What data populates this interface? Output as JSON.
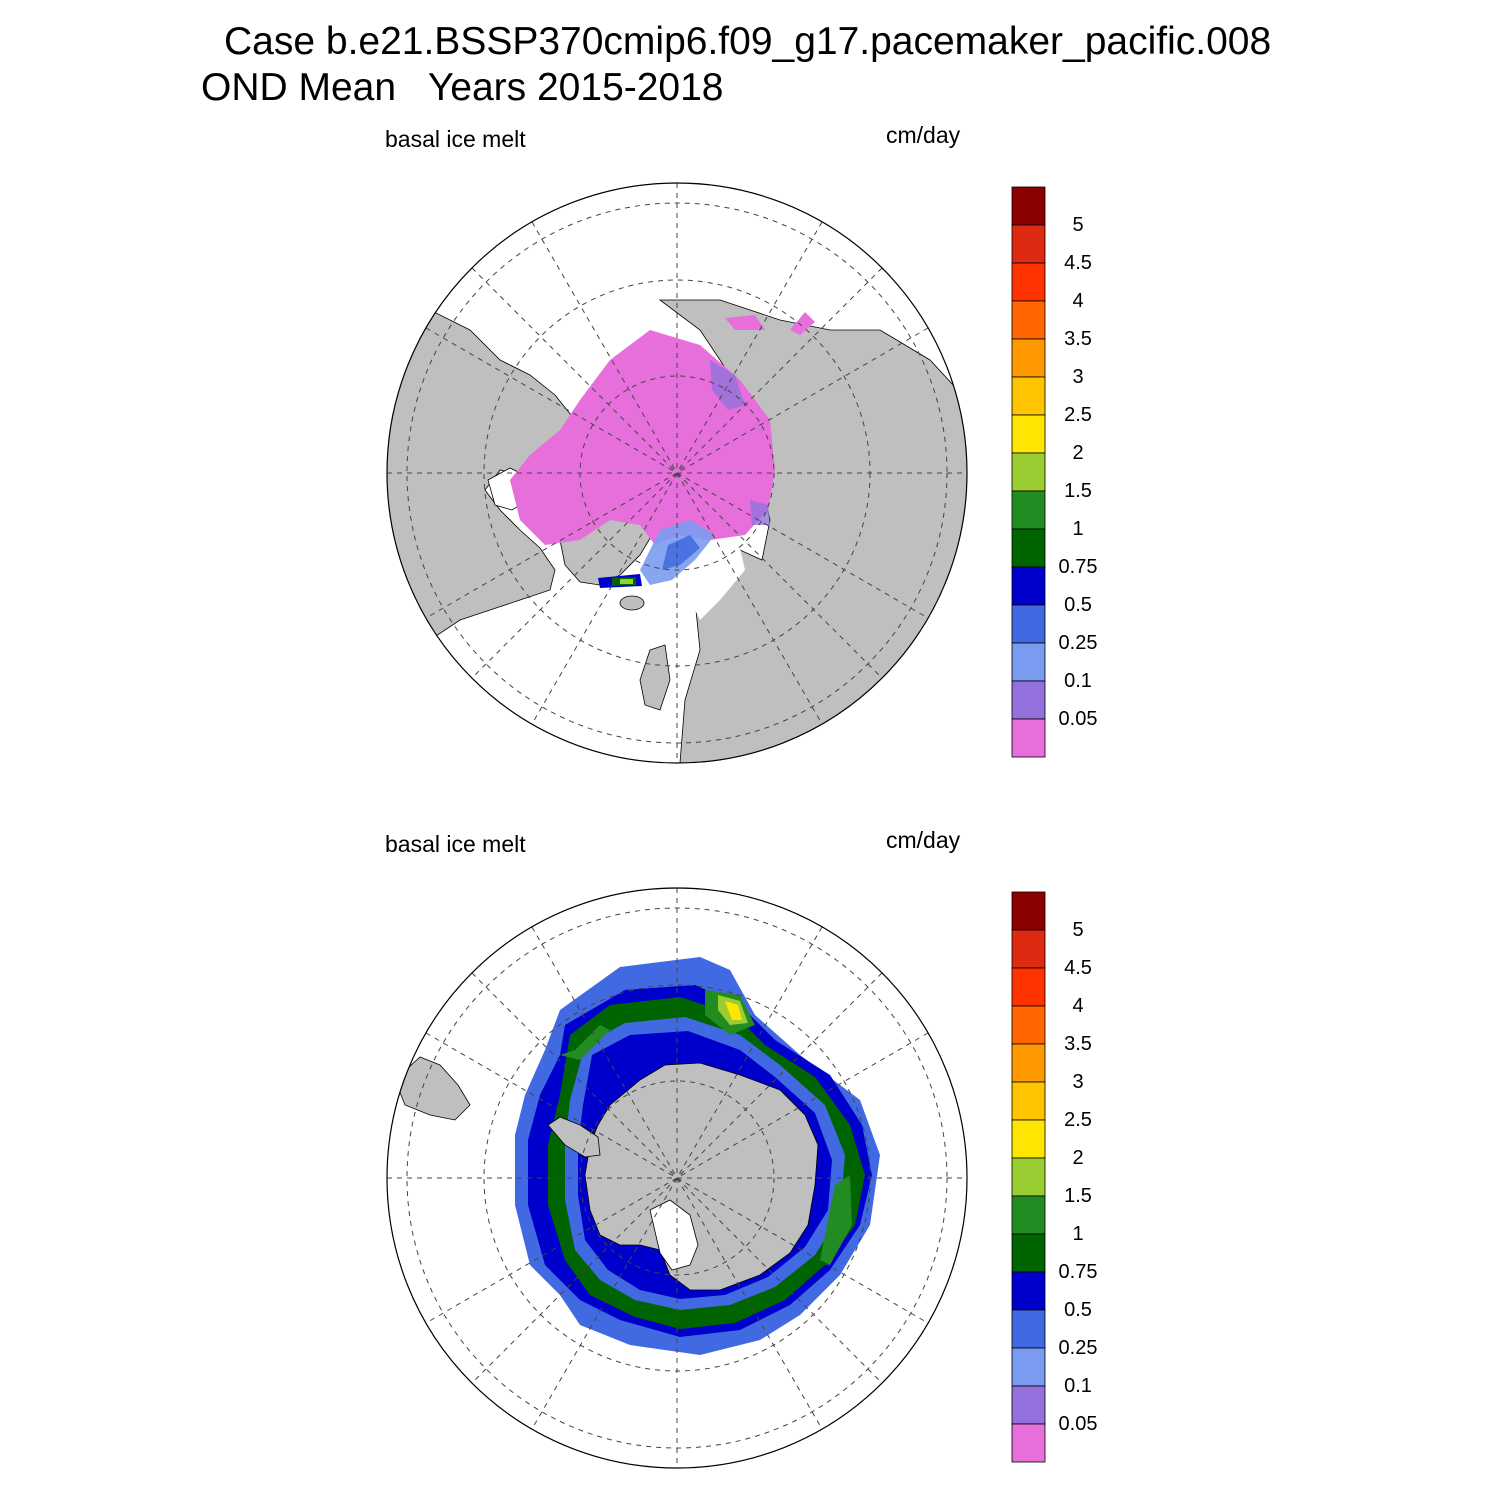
{
  "title": {
    "line1": "Case b.e21.BSSP370cmip6.f09_g17.pacemaker_pacific.008",
    "line2": "OND Mean   Years 2015-2018"
  },
  "colors": {
    "land": "#bfbfbf",
    "ocean": "#ffffff",
    "levels": [
      "#e66fdb",
      "#9370db",
      "#7b9bf0",
      "#4169e1",
      "#0000cd",
      "#006400",
      "#228b22",
      "#9acd32",
      "#ffe600",
      "#ffc400",
      "#ff9900",
      "#ff6600",
      "#ff3300",
      "#dd2a10",
      "#8b0000"
    ]
  },
  "chart_data": [
    {
      "type": "heatmap",
      "name": "north",
      "projection": "north polar stereographic",
      "left_label": "basal ice melt",
      "right_label": "cm/day",
      "colorbar": {
        "levels": [
          "0.05",
          "0.1",
          "0.25",
          "0.5",
          "0.75",
          "1",
          "1.5",
          "2",
          "2.5",
          "3",
          "3.5",
          "4",
          "4.5",
          "5"
        ]
      },
      "summary": "Arctic basin mostly below 0.05 cm/day; values 0.05–0.5 cm/day near the Barents and Kara seas; local maximum 1.5–2 cm/day off southeast Greenland"
    },
    {
      "type": "heatmap",
      "name": "south",
      "projection": "south polar stereographic",
      "left_label": "basal ice melt",
      "right_label": "cm/day",
      "colorbar": {
        "levels": [
          "0.05",
          "0.1",
          "0.25",
          "0.5",
          "0.75",
          "1",
          "1.5",
          "2",
          "2.5",
          "3",
          "3.5",
          "4",
          "4.5",
          "5"
        ]
      },
      "summary": "Ring of melt around Antarctica: 0.25–0.75 cm/day near the coast, 0.75–1.5 cm/day band in the marginal ice zone, maximum 2–2.5 cm/day in the Weddell Sea sector"
    }
  ]
}
